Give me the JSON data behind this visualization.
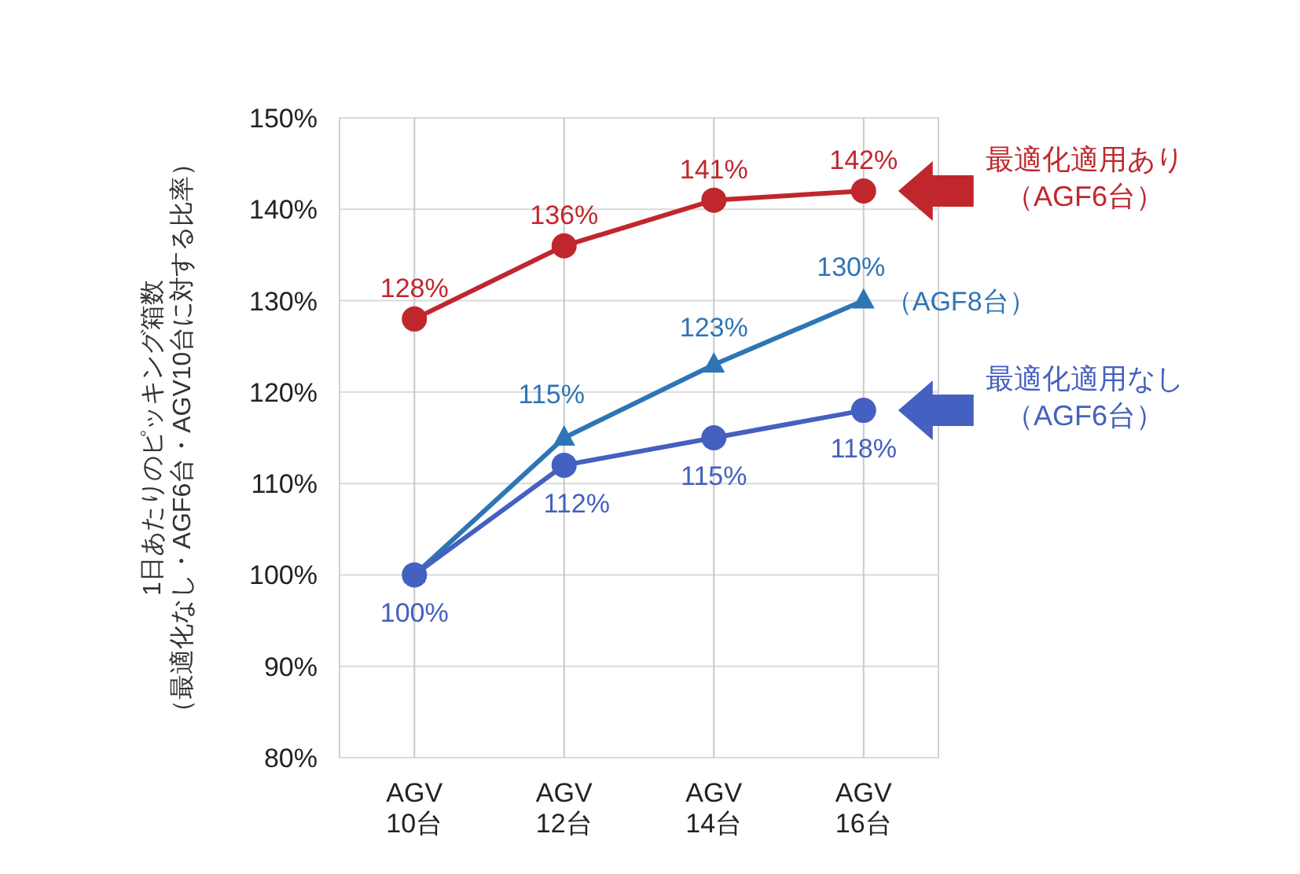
{
  "chart_data": {
    "type": "line",
    "ylabel": "1日あたりのピッキング箱数（最適化なし・AGF6台・AGV10台に対する比率）",
    "legend": "right",
    "categories": [
      "AGV\n10台",
      "AGV\n12台",
      "AGV\n14台",
      "AGV\n16台"
    ],
    "series": [
      {
        "name": "最適化適用あり（AGF6台）",
        "color": "#c0272d",
        "marker": "circle",
        "values": [
          128,
          136,
          141,
          142
        ],
        "value_labels": [
          "128%",
          "136%",
          "141%",
          "142%"
        ]
      },
      {
        "name": "（AGF8台）",
        "color": "#2e75b6",
        "marker": "triangle",
        "values": [
          100,
          115,
          123,
          130
        ],
        "value_labels": [
          null,
          "115%",
          "123%",
          "130%"
        ]
      },
      {
        "name": "最適化適用なし（AGF6台）",
        "color": "#4460c0",
        "marker": "circle",
        "values": [
          100,
          112,
          115,
          118
        ],
        "value_labels": [
          "100%",
          "112%",
          "115%",
          "118%"
        ]
      }
    ],
    "ylim": [
      80,
      150
    ],
    "yticks": [
      {
        "value": 80,
        "label": "80%"
      },
      {
        "value": 90,
        "label": "90%"
      },
      {
        "value": 100,
        "label": "100%"
      },
      {
        "value": 110,
        "label": "110%"
      },
      {
        "value": 120,
        "label": "120%"
      },
      {
        "value": 130,
        "label": "130%"
      },
      {
        "value": 140,
        "label": "140%"
      },
      {
        "value": 150,
        "label": "150%"
      }
    ],
    "grid": true,
    "line_style": "solid"
  }
}
